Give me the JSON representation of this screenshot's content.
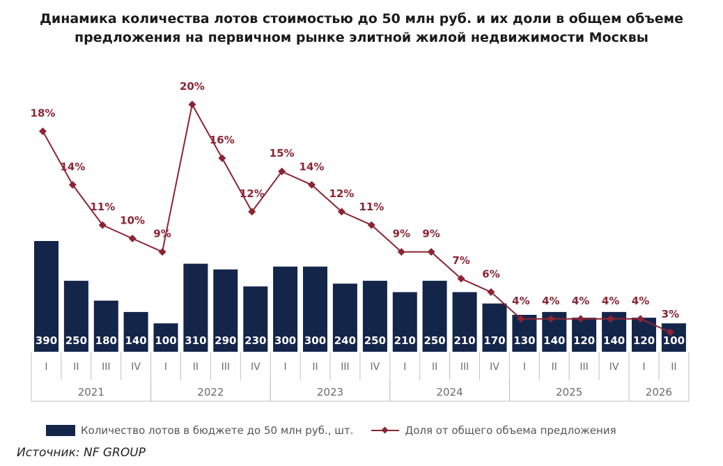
{
  "title_lines": [
    "Динамика количества лотов стоимостью до 50 млн руб. и их доли в общем объеме",
    "предложения на первичном рынке элитной жилой недвижимости Москвы"
  ],
  "colors": {
    "bars": "#14254a",
    "line": "#8b2433",
    "axis": "#bfbfbf",
    "axis_text": "#6b6b6b"
  },
  "chart_data": {
    "type": "bar",
    "categories": [
      "I 2021",
      "II 2021",
      "III 2021",
      "IV 2021",
      "I 2022",
      "II 2022",
      "III 2022",
      "IV 2022",
      "I 2023",
      "II 2023",
      "III 2023",
      "IV 2023",
      "I 2024",
      "II 2024",
      "III 2024",
      "IV 2024",
      "I 2025",
      "II 2025",
      "III 2025",
      "IV 2025",
      "I 2026",
      "II 2026"
    ],
    "quarters": [
      "I",
      "II",
      "III",
      "IV",
      "I",
      "II",
      "III",
      "IV",
      "I",
      "II",
      "III",
      "IV",
      "I",
      "II",
      "III",
      "IV",
      "I",
      "II",
      "III",
      "IV",
      "I",
      "II"
    ],
    "years": [
      {
        "label": "2021",
        "start": 0,
        "count": 4
      },
      {
        "label": "2022",
        "start": 4,
        "count": 4
      },
      {
        "label": "2023",
        "start": 8,
        "count": 4
      },
      {
        "label": "2024",
        "start": 12,
        "count": 4
      },
      {
        "label": "2025",
        "start": 16,
        "count": 4
      },
      {
        "label": "2026",
        "start": 20,
        "count": 2
      }
    ],
    "series": [
      {
        "name": "Количество лотов в бюджете до 50 млн руб., шт.",
        "type": "bar",
        "values": [
          390,
          250,
          180,
          140,
          100,
          310,
          290,
          230,
          300,
          300,
          240,
          250,
          210,
          250,
          210,
          170,
          130,
          140,
          120,
          140,
          120,
          100
        ]
      },
      {
        "name": "Доля от общего объема предложения",
        "type": "line",
        "values": [
          18,
          14,
          11,
          10,
          9,
          20,
          16,
          12,
          15,
          14,
          12,
          11,
          9,
          9,
          7,
          6,
          4,
          4,
          4,
          4,
          4,
          3
        ],
        "labels": [
          "18%",
          "14%",
          "11%",
          "10%",
          "9%",
          "20%",
          "16%",
          "12%",
          "15%",
          "14%",
          "12%",
          "11%",
          "9%",
          "9%",
          "7%",
          "6%",
          "4%",
          "4%",
          "4%",
          "4%",
          "4%",
          "3%"
        ]
      }
    ],
    "legend_position": "bottom",
    "grid": false
  },
  "source": "Источник: NF GROUP"
}
